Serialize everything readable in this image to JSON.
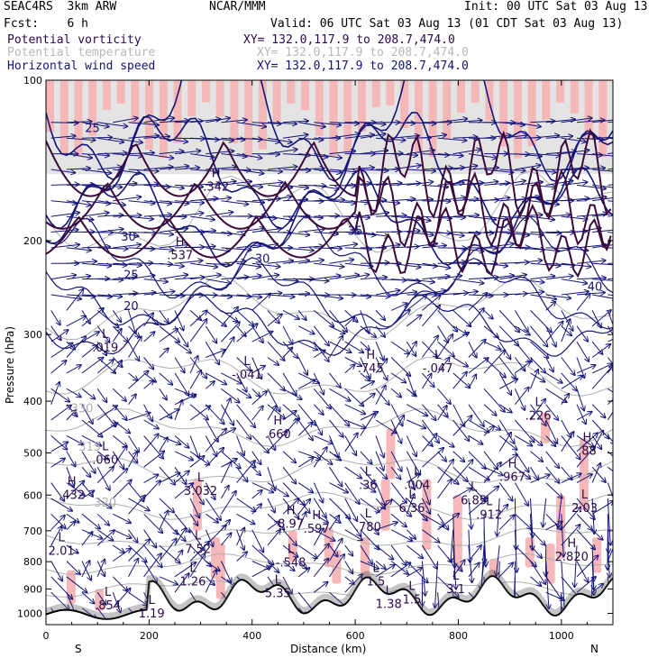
{
  "header": {
    "model": "SEAC4RS  3km ARW",
    "center": "NCAR/MMM",
    "init": "Init: 00 UTC Sat 03 Aug 13",
    "fcst": "Fcst:    6 h",
    "valid": "Valid: 06 UTC Sat 03 Aug 13 (01 CDT Sat 03 Aug 13)",
    "fields": [
      {
        "name": "Potential vorticity",
        "xy": "XY= 132.0,117.9 to 208.7,474.0",
        "color": "#2a0a4a"
      },
      {
        "name": "Potential temperature",
        "xy": "XY= 132.0,117.9 to 208.7,474.0",
        "color": "#b8b8b8"
      },
      {
        "name": "Horizontal wind speed",
        "xy": "XY= 132.0,117.9 to 208.7,474.0",
        "color": "#14147a"
      }
    ]
  },
  "chart_data": {
    "type": "heatmap",
    "title": "",
    "xlabel": "Distance (km)",
    "ylabel": "Pressure (hPa)",
    "xlim": [
      0,
      1100
    ],
    "ylim": [
      1050,
      100
    ],
    "y_scale": "log",
    "x_ticks": [
      0,
      200,
      400,
      600,
      800,
      1000
    ],
    "y_ticks": [
      100,
      200,
      300,
      400,
      500,
      600,
      700,
      800,
      900,
      1000
    ],
    "x_end_labels": {
      "left": "S",
      "right": "N"
    },
    "speed_contours": [
      {
        "label": "25",
        "x": 90,
        "p": 125
      },
      {
        "label": "30",
        "x": 160,
        "p": 200
      },
      {
        "label": "25",
        "x": 165,
        "p": 236
      },
      {
        "label": "20",
        "x": 165,
        "p": 270
      },
      {
        "label": "30",
        "x": 420,
        "p": 220
      },
      {
        "label": "35",
        "x": 600,
        "p": 195
      },
      {
        "label": "40",
        "x": 1065,
        "p": 248
      }
    ],
    "theta_contours": [
      {
        "label": "330",
        "x": 70,
        "p": 420
      },
      {
        "label": "320",
        "x": 115,
        "p": 630
      },
      {
        "label": "315",
        "x": 85,
        "p": 495
      }
    ],
    "pv_extrema": [
      {
        "type": "H",
        "value": ".342",
        "x": 330,
        "p": 160
      },
      {
        "type": "H",
        "value": ".537",
        "x": 260,
        "p": 215
      },
      {
        "type": "L",
        "value": ".019",
        "x": 115,
        "p": 320
      },
      {
        "type": "L",
        "value": "-.041",
        "x": 390,
        "p": 360
      },
      {
        "type": "H",
        "value": ".745",
        "x": 630,
        "p": 350
      },
      {
        "type": "L",
        "value": "-.047",
        "x": 760,
        "p": 350
      },
      {
        "type": "L",
        "value": ".226",
        "x": 955,
        "p": 430
      },
      {
        "type": "H",
        "value": ".660",
        "x": 450,
        "p": 465
      },
      {
        "type": "L",
        "value": ".060",
        "x": 115,
        "p": 520
      },
      {
        "type": "H",
        "value": ".432",
        "x": 50,
        "p": 605
      },
      {
        "type": "L",
        "value": "3.032",
        "x": 300,
        "p": 595
      },
      {
        "type": "L",
        "value": ".36",
        "x": 625,
        "p": 580
      },
      {
        "type": "L",
        "value": ".004",
        "x": 720,
        "p": 580
      },
      {
        "type": "H",
        "value": ".967",
        "x": 905,
        "p": 560
      },
      {
        "type": "L",
        "value": "6.85",
        "x": 830,
        "p": 620
      },
      {
        "type": "L",
        "value": "6.36",
        "x": 710,
        "p": 640
      },
      {
        "type": "L",
        "value": ".912",
        "x": 860,
        "p": 660
      },
      {
        "type": "H",
        "value": ".88",
        "x": 1050,
        "p": 500
      },
      {
        "type": "L",
        "value": "2.03",
        "x": 1045,
        "p": 640
      },
      {
        "type": "H",
        "value": "8.97",
        "x": 475,
        "p": 685
      },
      {
        "type": "H",
        "value": ".597",
        "x": 525,
        "p": 700
      },
      {
        "type": "L",
        "value": ".780",
        "x": 625,
        "p": 695
      },
      {
        "type": "L",
        "value": "2.01",
        "x": 30,
        "p": 770
      },
      {
        "type": "L",
        "value": "7.52",
        "x": 295,
        "p": 765
      },
      {
        "type": "L",
        "value": "-.548",
        "x": 475,
        "p": 810
      },
      {
        "type": "L",
        "value": "1.26",
        "x": 285,
        "p": 880
      },
      {
        "type": "L",
        "value": "5.35",
        "x": 450,
        "p": 925
      },
      {
        "type": "L",
        "value": "1.5",
        "x": 640,
        "p": 880
      },
      {
        "type": "L",
        "value": "1.38",
        "x": 665,
        "p": 970
      },
      {
        "type": "L",
        "value": "1.5",
        "x": 710,
        "p": 950
      },
      {
        "type": "L",
        "value": ".854",
        "x": 120,
        "p": 975
      },
      {
        "type": "L",
        "value": "1.19",
        "x": 205,
        "p": 1010
      },
      {
        "type": "H",
        "value": "2.820",
        "x": 1020,
        "p": 790
      },
      {
        "type": "L",
        "value": "3.1",
        "x": 795,
        "p": 910
      }
    ]
  }
}
